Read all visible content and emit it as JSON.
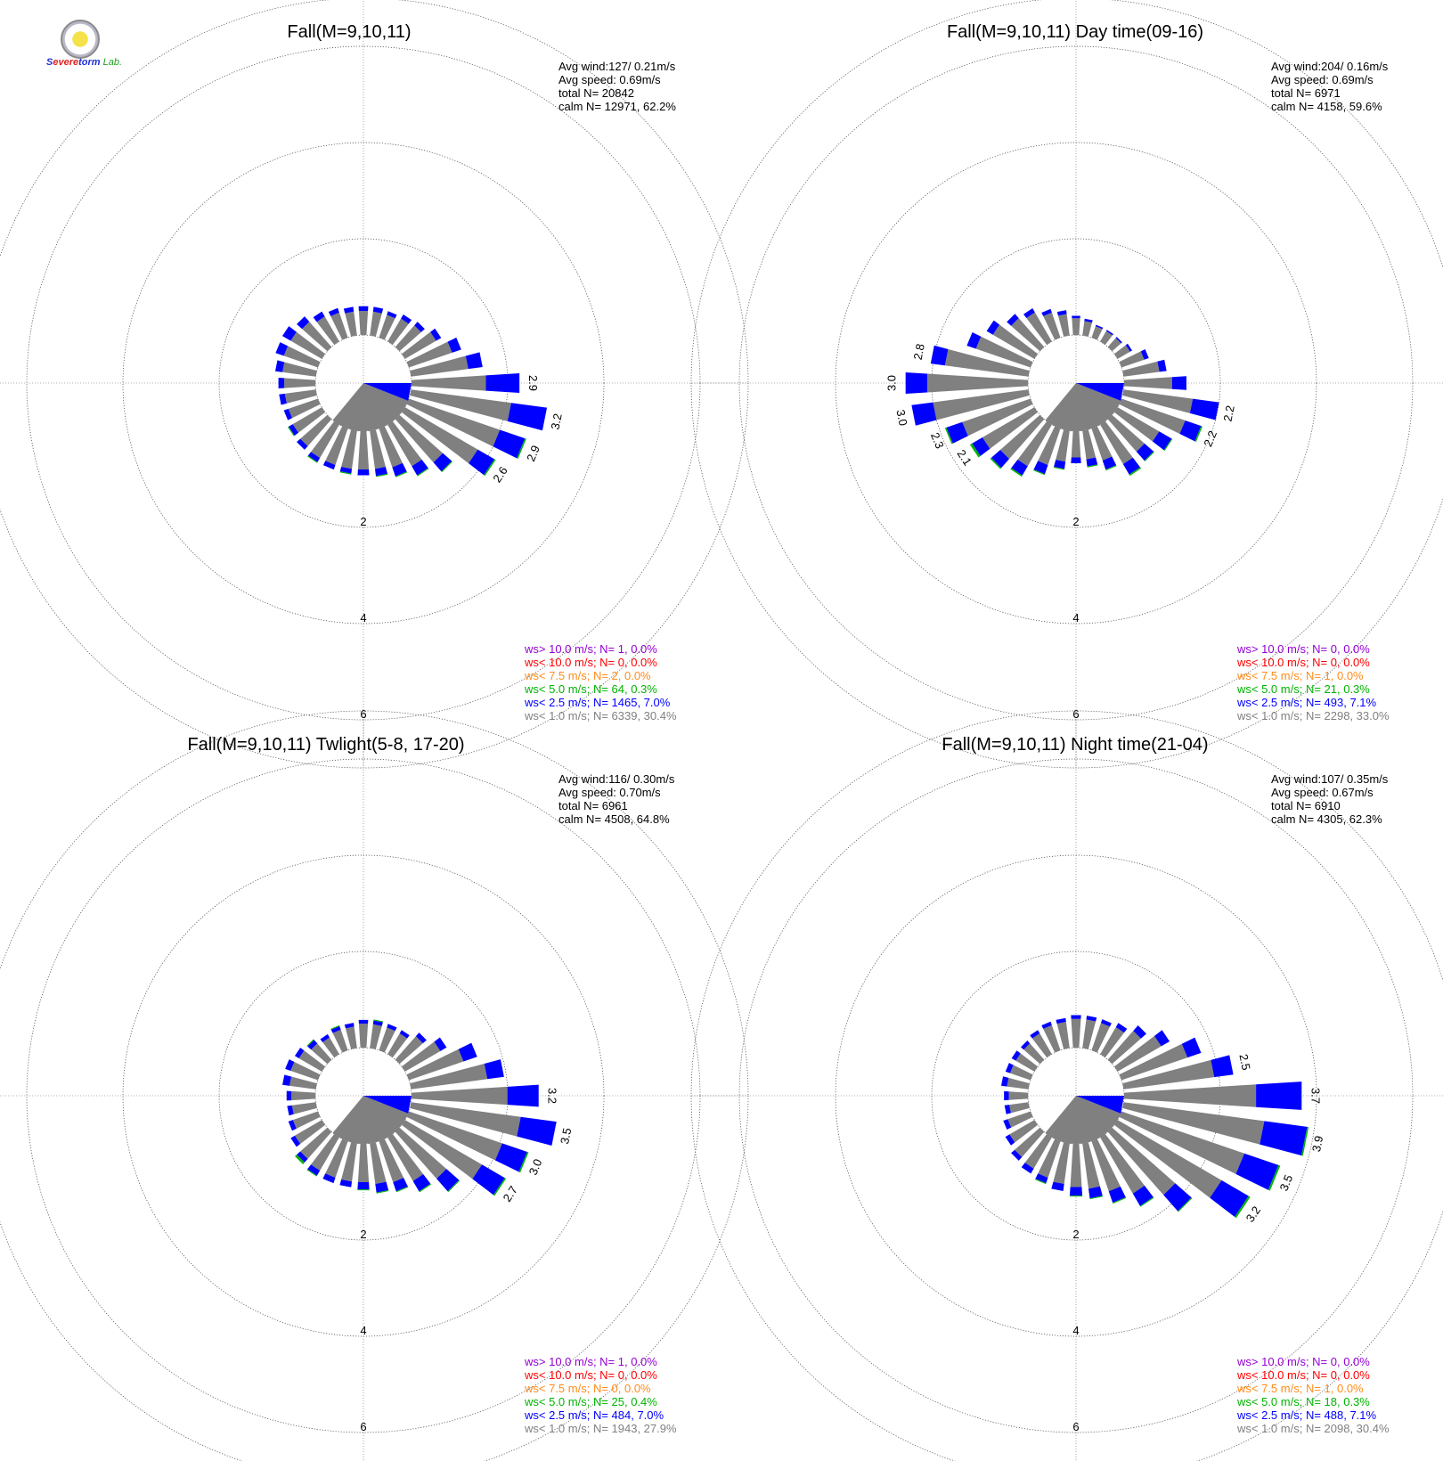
{
  "logo": {
    "text_parts": [
      "S",
      "evere",
      "torm",
      "Lab."
    ]
  },
  "chart_data": [
    {
      "type": "polar-bar",
      "title": "Fall(M=9,10,11)",
      "stats": [
        "Avg wind:127/ 0.21m/s",
        "Avg speed: 0.69m/s",
        "total N=      20842",
        "calm N=  12971,  62.2%"
      ],
      "ring_labels": [
        "2",
        "4",
        "6"
      ],
      "rmax": 7,
      "value_labels": [
        {
          "bin": 0,
          "text": "2.9"
        },
        {
          "bin": 1,
          "text": "3.2"
        },
        {
          "bin": 2,
          "text": "2.9"
        },
        {
          "bin": 3,
          "text": "2.6"
        }
      ],
      "bins": [
        {
          "gray": 1.55,
          "blue": 0.7,
          "green": 0
        },
        {
          "gray": 2.1,
          "blue": 0.75,
          "green": 0
        },
        {
          "gray": 2.0,
          "blue": 0.55,
          "green": 0.03
        },
        {
          "gray": 1.75,
          "blue": 0.4,
          "green": 0.03
        },
        {
          "gray": 1.2,
          "blue": 0.25,
          "green": 0.02
        },
        {
          "gray": 1.0,
          "blue": 0.22,
          "green": 0.02
        },
        {
          "gray": 0.85,
          "blue": 0.2,
          "green": 0.02
        },
        {
          "gray": 0.8,
          "blue": 0.15,
          "green": 0.02
        },
        {
          "gray": 0.8,
          "blue": 0.12,
          "green": 0
        },
        {
          "gray": 0.8,
          "blue": 0.1,
          "green": 0.02
        },
        {
          "gray": 0.8,
          "blue": 0.1,
          "green": 0
        },
        {
          "gray": 0.8,
          "blue": 0.1,
          "green": 0.02
        },
        {
          "gray": 0.75,
          "blue": 0.1,
          "green": 0
        },
        {
          "gray": 0.7,
          "blue": 0.1,
          "green": 0.02
        },
        {
          "gray": 0.65,
          "blue": 0.1,
          "green": 0
        },
        {
          "gray": 0.65,
          "blue": 0.12,
          "green": 0
        },
        {
          "gray": 0.65,
          "blue": 0.12,
          "green": 0
        },
        {
          "gray": 0.7,
          "blue": 0.15,
          "green": 0
        },
        {
          "gray": 0.75,
          "blue": 0.18,
          "green": 0
        },
        {
          "gray": 0.75,
          "blue": 0.2,
          "green": 0
        },
        {
          "gray": 0.7,
          "blue": 0.15,
          "green": 0
        },
        {
          "gray": 0.6,
          "blue": 0.12,
          "green": 0
        },
        {
          "gray": 0.55,
          "blue": 0.1,
          "green": 0
        },
        {
          "gray": 0.5,
          "blue": 0.1,
          "green": 0
        },
        {
          "gray": 0.5,
          "blue": 0.1,
          "green": 0
        },
        {
          "gray": 0.5,
          "blue": 0.1,
          "green": 0
        },
        {
          "gray": 0.5,
          "blue": 0.08,
          "green": 0
        },
        {
          "gray": 0.55,
          "blue": 0.1,
          "green": 0
        },
        {
          "gray": 0.6,
          "blue": 0.1,
          "green": 0
        },
        {
          "gray": 0.75,
          "blue": 0.12,
          "green": 0
        },
        {
          "gray": 0.95,
          "blue": 0.2,
          "green": 0
        },
        {
          "gray": 1.2,
          "blue": 0.3,
          "green": 0
        }
      ],
      "legend": [
        {
          "text": "ws> 10.0 m/s; N=     1,  0.0%",
          "color": "#9400d3"
        },
        {
          "text": "ws< 10.0 m/s; N=     0,  0.0%",
          "color": "#ff0000"
        },
        {
          "text": "ws<  7.5 m/s; N=     2,  0.0%",
          "color": "#ff8c1a"
        },
        {
          "text": "ws<  5.0 m/s; N=    64,  0.3%",
          "color": "#00b400"
        },
        {
          "text": "ws<  2.5 m/s; N=  1465,  7.0%",
          "color": "#0000ff"
        },
        {
          "text": "ws<  1.0 m/s; N=  6339, 30.4%",
          "color": "#808080"
        }
      ]
    },
    {
      "type": "polar-bar",
      "title": "Fall(M=9,10,11) Day time(09-16)",
      "stats": [
        "Avg wind:204/ 0.16m/s",
        "Avg speed: 0.69m/s",
        "total N=        6971",
        "calm N=   4158,  59.6%"
      ],
      "ring_labels": [
        "2",
        "4",
        "6"
      ],
      "rmax": 7,
      "value_labels": [
        {
          "bin": 1,
          "text": "2.2"
        },
        {
          "bin": 2,
          "text": "2.2"
        },
        {
          "bin": 13,
          "text": "2.1"
        },
        {
          "bin": 14,
          "text": "2.3"
        },
        {
          "bin": 15,
          "text": "3.0"
        },
        {
          "bin": 16,
          "text": "3.0"
        },
        {
          "bin": 17,
          "text": "2.8"
        }
      ],
      "bins": [
        {
          "gray": 1.0,
          "blue": 0.3,
          "green": 0
        },
        {
          "gray": 1.45,
          "blue": 0.55,
          "green": 0
        },
        {
          "gray": 1.4,
          "blue": 0.35,
          "green": 0.03
        },
        {
          "gray": 1.0,
          "blue": 0.3,
          "green": 0.02
        },
        {
          "gray": 0.9,
          "blue": 0.25,
          "green": 0.02
        },
        {
          "gray": 0.95,
          "blue": 0.25,
          "green": 0.03
        },
        {
          "gray": 0.7,
          "blue": 0.2,
          "green": 0.02
        },
        {
          "gray": 0.6,
          "blue": 0.15,
          "green": 0.02
        },
        {
          "gray": 0.55,
          "blue": 0.12,
          "green": 0
        },
        {
          "gray": 0.65,
          "blue": 0.15,
          "green": 0.02
        },
        {
          "gray": 0.8,
          "blue": 0.2,
          "green": 0.02
        },
        {
          "gray": 1.0,
          "blue": 0.22,
          "green": 0.03
        },
        {
          "gray": 1.1,
          "blue": 0.25,
          "green": 0.03
        },
        {
          "gray": 1.25,
          "blue": 0.25,
          "green": 0.05
        },
        {
          "gray": 1.5,
          "blue": 0.35,
          "green": 0.03
        },
        {
          "gray": 2.0,
          "blue": 0.45,
          "green": 0
        },
        {
          "gray": 2.1,
          "blue": 0.45,
          "green": 0
        },
        {
          "gray": 1.75,
          "blue": 0.3,
          "green": 0
        },
        {
          "gray": 1.2,
          "blue": 0.2,
          "green": 0
        },
        {
          "gray": 1.0,
          "blue": 0.15,
          "green": 0
        },
        {
          "gray": 0.8,
          "blue": 0.12,
          "green": 0
        },
        {
          "gray": 0.7,
          "blue": 0.1,
          "green": 0
        },
        {
          "gray": 0.55,
          "blue": 0.08,
          "green": 0
        },
        {
          "gray": 0.45,
          "blue": 0.08,
          "green": 0
        },
        {
          "gray": 0.35,
          "blue": 0.05,
          "green": 0
        },
        {
          "gray": 0.3,
          "blue": 0.05,
          "green": 0
        },
        {
          "gray": 0.25,
          "blue": 0.03,
          "green": 0
        },
        {
          "gray": 0.25,
          "blue": 0.03,
          "green": 0
        },
        {
          "gray": 0.25,
          "blue": 0.03,
          "green": 0
        },
        {
          "gray": 0.3,
          "blue": 0.05,
          "green": 0
        },
        {
          "gray": 0.5,
          "blue": 0.1,
          "green": 0
        },
        {
          "gray": 0.75,
          "blue": 0.15,
          "green": 0
        }
      ],
      "legend": [
        {
          "text": "ws> 10.0 m/s; N=     0,  0.0%",
          "color": "#9400d3"
        },
        {
          "text": "ws< 10.0 m/s; N=     0,  0.0%",
          "color": "#ff0000"
        },
        {
          "text": "ws<  7.5 m/s; N=     1,  0.0%",
          "color": "#ff8c1a"
        },
        {
          "text": "ws<  5.0 m/s; N=    21,  0.3%",
          "color": "#00b400"
        },
        {
          "text": "ws<  2.5 m/s; N=   493,  7.1%",
          "color": "#0000ff"
        },
        {
          "text": "ws<  1.0 m/s; N=  2298, 33.0%",
          "color": "#808080"
        }
      ]
    },
    {
      "type": "polar-bar",
      "title": "Fall(M=9,10,11) Twlight(5-8, 17-20)",
      "stats": [
        "Avg wind:116/ 0.30m/s",
        "Avg speed: 0.70m/s",
        "total N=        6961",
        "calm N=   4508,  64.8%"
      ],
      "ring_labels": [
        "2",
        "4",
        "6"
      ],
      "rmax": 7,
      "value_labels": [
        {
          "bin": 0,
          "text": "3.2"
        },
        {
          "bin": 1,
          "text": "3.5"
        },
        {
          "bin": 2,
          "text": "3.0"
        },
        {
          "bin": 3,
          "text": "2.7"
        }
      ],
      "bins": [
        {
          "gray": 2.0,
          "blue": 0.65,
          "green": 0
        },
        {
          "gray": 2.3,
          "blue": 0.75,
          "green": 0
        },
        {
          "gray": 2.05,
          "blue": 0.55,
          "green": 0.03
        },
        {
          "gray": 1.85,
          "blue": 0.55,
          "green": 0.03
        },
        {
          "gray": 1.3,
          "blue": 0.35,
          "green": 0.02
        },
        {
          "gray": 1.05,
          "blue": 0.25,
          "green": 0.02
        },
        {
          "gray": 0.9,
          "blue": 0.2,
          "green": 0.02
        },
        {
          "gray": 0.85,
          "blue": 0.18,
          "green": 0.02
        },
        {
          "gray": 0.8,
          "blue": 0.15,
          "green": 0.02
        },
        {
          "gray": 0.8,
          "blue": 0.12,
          "green": 0
        },
        {
          "gray": 0.8,
          "blue": 0.12,
          "green": 0
        },
        {
          "gray": 0.8,
          "blue": 0.12,
          "green": 0.02
        },
        {
          "gray": 0.75,
          "blue": 0.1,
          "green": 0.05
        },
        {
          "gray": 0.65,
          "blue": 0.1,
          "green": 0
        },
        {
          "gray": 0.55,
          "blue": 0.1,
          "green": 0
        },
        {
          "gray": 0.5,
          "blue": 0.1,
          "green": 0
        },
        {
          "gray": 0.5,
          "blue": 0.1,
          "green": 0
        },
        {
          "gray": 0.55,
          "blue": 0.15,
          "green": 0
        },
        {
          "gray": 0.6,
          "blue": 0.12,
          "green": 0
        },
        {
          "gray": 0.55,
          "blue": 0.1,
          "green": 0
        },
        {
          "gray": 0.45,
          "blue": 0.1,
          "green": 0.02
        },
        {
          "gray": 0.4,
          "blue": 0.08,
          "green": 0
        },
        {
          "gray": 0.45,
          "blue": 0.08,
          "green": 0.02
        },
        {
          "gray": 0.45,
          "blue": 0.08,
          "green": 0
        },
        {
          "gray": 0.5,
          "blue": 0.08,
          "green": 0
        },
        {
          "gray": 0.5,
          "blue": 0.08,
          "green": 0.02
        },
        {
          "gray": 0.5,
          "blue": 0.08,
          "green": 0
        },
        {
          "gray": 0.5,
          "blue": 0.08,
          "green": 0
        },
        {
          "gray": 0.65,
          "blue": 0.1,
          "green": 0
        },
        {
          "gray": 0.85,
          "blue": 0.15,
          "green": 0
        },
        {
          "gray": 1.2,
          "blue": 0.3,
          "green": 0
        },
        {
          "gray": 1.6,
          "blue": 0.35,
          "green": 0
        }
      ],
      "legend": [
        {
          "text": "ws> 10.0 m/s; N=     1,  0.0%",
          "color": "#9400d3"
        },
        {
          "text": "ws< 10.0 m/s; N=     0,  0.0%",
          "color": "#ff0000"
        },
        {
          "text": "ws<  7.5 m/s; N=     0,  0.0%",
          "color": "#ff8c1a"
        },
        {
          "text": "ws<  5.0 m/s; N=    25,  0.4%",
          "color": "#00b400"
        },
        {
          "text": "ws<  2.5 m/s; N=   484,  7.0%",
          "color": "#0000ff"
        },
        {
          "text": "ws<  1.0 m/s; N=  1943, 27.9%",
          "color": "#808080"
        }
      ]
    },
    {
      "type": "polar-bar",
      "title": "Fall(M=9,10,11) Night time(21-04)",
      "stats": [
        "Avg wind:107/ 0.35m/s",
        "Avg speed: 0.67m/s",
        "total N=        6910",
        "calm N=   4305,  62.3%"
      ],
      "ring_labels": [
        "2",
        "4",
        "6"
      ],
      "rmax": 7,
      "value_labels": [
        {
          "bin": 0,
          "text": "3.7"
        },
        {
          "bin": 1,
          "text": "3.9"
        },
        {
          "bin": 2,
          "text": "3.5"
        },
        {
          "bin": 3,
          "text": "3.2"
        },
        {
          "bin": 31,
          "text": "2.5"
        }
      ],
      "bins": [
        {
          "gray": 2.75,
          "blue": 0.95,
          "green": 0
        },
        {
          "gray": 2.95,
          "blue": 0.9,
          "green": 0.03
        },
        {
          "gray": 2.7,
          "blue": 0.75,
          "green": 0.04
        },
        {
          "gray": 2.5,
          "blue": 0.65,
          "green": 0.04
        },
        {
          "gray": 1.75,
          "blue": 0.45,
          "green": 0.02
        },
        {
          "gray": 1.35,
          "blue": 0.3,
          "green": 0.02
        },
        {
          "gray": 1.1,
          "blue": 0.25,
          "green": 0.02
        },
        {
          "gray": 0.95,
          "blue": 0.2,
          "green": 0.02
        },
        {
          "gray": 0.9,
          "blue": 0.18,
          "green": 0.02
        },
        {
          "gray": 0.85,
          "blue": 0.15,
          "green": 0
        },
        {
          "gray": 0.8,
          "blue": 0.12,
          "green": 0.02
        },
        {
          "gray": 0.75,
          "blue": 0.12,
          "green": 0
        },
        {
          "gray": 0.7,
          "blue": 0.1,
          "green": 0
        },
        {
          "gray": 0.6,
          "blue": 0.1,
          "green": 0
        },
        {
          "gray": 0.5,
          "blue": 0.1,
          "green": 0
        },
        {
          "gray": 0.4,
          "blue": 0.1,
          "green": 0
        },
        {
          "gray": 0.4,
          "blue": 0.1,
          "green": 0
        },
        {
          "gray": 0.45,
          "blue": 0.12,
          "green": 0
        },
        {
          "gray": 0.45,
          "blue": 0.1,
          "green": 0
        },
        {
          "gray": 0.45,
          "blue": 0.1,
          "green": 0
        },
        {
          "gray": 0.45,
          "blue": 0.08,
          "green": 0
        },
        {
          "gray": 0.5,
          "blue": 0.08,
          "green": 0
        },
        {
          "gray": 0.55,
          "blue": 0.08,
          "green": 0
        },
        {
          "gray": 0.55,
          "blue": 0.08,
          "green": 0
        },
        {
          "gray": 0.6,
          "blue": 0.08,
          "green": 0
        },
        {
          "gray": 0.6,
          "blue": 0.08,
          "green": 0
        },
        {
          "gray": 0.6,
          "blue": 0.08,
          "green": 0
        },
        {
          "gray": 0.65,
          "blue": 0.1,
          "green": 0
        },
        {
          "gray": 0.8,
          "blue": 0.15,
          "green": 0
        },
        {
          "gray": 1.05,
          "blue": 0.2,
          "green": 0
        },
        {
          "gray": 1.45,
          "blue": 0.3,
          "green": 0
        },
        {
          "gray": 1.9,
          "blue": 0.4,
          "green": 0
        }
      ],
      "legend": [
        {
          "text": "ws> 10.0 m/s; N=     0,  0.0%",
          "color": "#9400d3"
        },
        {
          "text": "ws< 10.0 m/s; N=     0,  0.0%",
          "color": "#ff0000"
        },
        {
          "text": "ws<  7.5 m/s; N=     1,  0.0%",
          "color": "#ff8c1a"
        },
        {
          "text": "ws<  5.0 m/s; N=    18,  0.3%",
          "color": "#00b400"
        },
        {
          "text": "ws<  2.5 m/s; N=   488,  7.1%",
          "color": "#0000ff"
        },
        {
          "text": "ws<  1.0 m/s; N=  2098, 30.4%",
          "color": "#808080"
        }
      ]
    }
  ]
}
